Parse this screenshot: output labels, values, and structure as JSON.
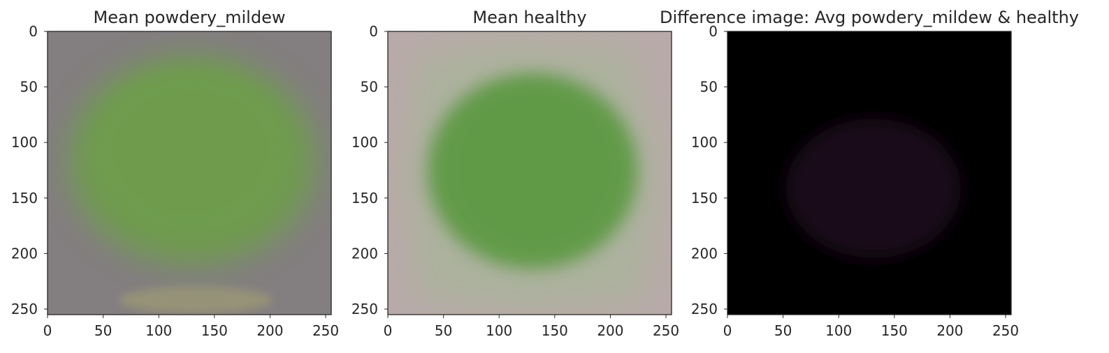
{
  "chart_data": [
    {
      "type": "image",
      "title": "Mean powdery_mildew",
      "xticks": [
        0,
        50,
        100,
        150,
        200,
        250
      ],
      "yticks": [
        0,
        50,
        100,
        150,
        200,
        250
      ],
      "xlim": [
        0,
        255
      ],
      "ylim": [
        255,
        0
      ],
      "grid": false,
      "background_color": "#837e80",
      "leaf_color": "#6e9e4c"
    },
    {
      "type": "image",
      "title": "Mean healthy",
      "xticks": [
        0,
        50,
        100,
        150,
        200,
        250
      ],
      "yticks": [
        0,
        50,
        100,
        150,
        200,
        250
      ],
      "xlim": [
        0,
        255
      ],
      "ylim": [
        255,
        0
      ],
      "grid": false,
      "background_color": "#b8aaa8",
      "leaf_color": "#5f9a45"
    },
    {
      "type": "image",
      "title": "Difference image: Avg powdery_mildew & healthy",
      "xticks": [
        0,
        50,
        100,
        150,
        200,
        250
      ],
      "yticks": [
        0,
        50,
        100,
        150,
        200,
        250
      ],
      "xlim": [
        0,
        255
      ],
      "ylim": [
        255,
        0
      ],
      "grid": false,
      "background_color": "#000000",
      "leaf_color": "#1c0b1c"
    }
  ]
}
